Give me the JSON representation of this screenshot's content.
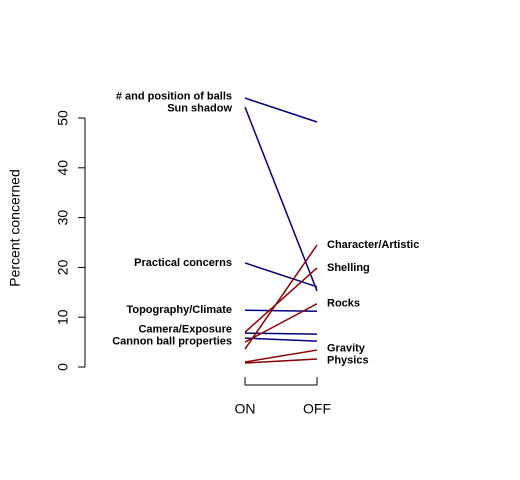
{
  "chart_data": {
    "type": "slope",
    "y_label": "Percent concerned",
    "categories": [
      "ON",
      "OFF"
    ],
    "ylim": [
      0,
      50
    ],
    "yticks": [
      0,
      10,
      20,
      30,
      40,
      50
    ],
    "series": [
      {
        "name": "# and position of balls",
        "color": "#000080",
        "values": [
          54.0,
          49.2
        ]
      },
      {
        "name": "Sun shadow",
        "color": "#000080",
        "values": [
          52.2,
          15.3
        ]
      },
      {
        "name": "Practical concerns",
        "color": "#000080",
        "values": [
          20.9,
          16.1
        ]
      },
      {
        "name": "Topography/Climate",
        "color": "#000080",
        "values": [
          11.4,
          11.2
        ]
      },
      {
        "name": "Camera/Exposure",
        "color": "#000080",
        "values": [
          6.8,
          6.6
        ]
      },
      {
        "name": "Cannon ball properties",
        "color": "#000080",
        "values": [
          5.8,
          5.2
        ]
      },
      {
        "name": "Character/Artistic",
        "color": "#8b0000",
        "values": [
          3.6,
          24.5
        ]
      },
      {
        "name": "Shelling",
        "color": "#8b0000",
        "values": [
          7.0,
          19.9
        ]
      },
      {
        "name": "Rocks",
        "color": "#8b0000",
        "values": [
          5.0,
          12.7
        ]
      },
      {
        "name": "Gravity",
        "color": "#8b0000",
        "values": [
          1.0,
          3.4
        ]
      },
      {
        "name": "Physics",
        "color": "#8b0000",
        "values": [
          0.8,
          1.6
        ]
      }
    ]
  }
}
